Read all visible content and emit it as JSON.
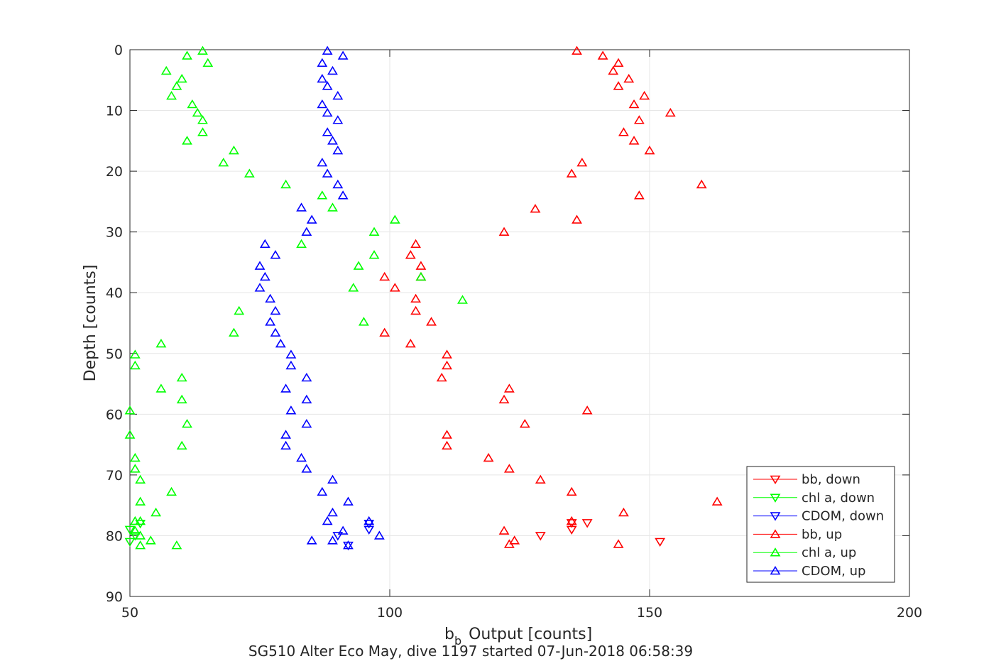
{
  "chart_data": {
    "type": "scatter",
    "xlabel": "b",
    "xlabel_sub": "b",
    "xlabel_rest": " Output [counts]",
    "ylabel": "Depth [counts]",
    "caption": "SG510 Alter Eco May, dive 1197 started 07-Jun-2018 06:58:39",
    "xlim": [
      50,
      200
    ],
    "ylim": [
      0,
      90
    ],
    "y_reversed": true,
    "grid": true,
    "legend_position": "bottom-right",
    "x_ticks": [
      50,
      100,
      150,
      200
    ],
    "y_ticks": [
      0,
      10,
      20,
      30,
      40,
      50,
      60,
      70,
      80,
      90
    ],
    "series": [
      {
        "name": "bb, down",
        "color": "#ff0000",
        "marker": "triangle-down",
        "points": [
          [
            129,
            80.0
          ],
          [
            135,
            79.0
          ],
          [
            138,
            77.9
          ],
          [
            152,
            81.0
          ],
          [
            135,
            77.9
          ]
        ]
      },
      {
        "name": "chl a, down",
        "color": "#00ff00",
        "marker": "triangle-down",
        "points": [
          [
            50,
            79.0
          ],
          [
            51,
            80.0
          ],
          [
            50,
            81.0
          ],
          [
            52,
            78.0
          ]
        ]
      },
      {
        "name": "CDOM, down",
        "color": "#0000ff",
        "marker": "triangle-down",
        "points": [
          [
            96,
            79.0
          ],
          [
            90,
            80.0
          ],
          [
            92,
            81.6
          ],
          [
            96,
            78.0
          ]
        ]
      },
      {
        "name": "bb, up",
        "color": "#ff0000",
        "marker": "triangle-up",
        "points": [
          [
            136,
            0.2
          ],
          [
            141,
            1.0
          ],
          [
            144,
            2.2
          ],
          [
            143,
            3.5
          ],
          [
            146,
            4.8
          ],
          [
            144,
            6.0
          ],
          [
            149,
            7.6
          ],
          [
            147,
            9.0
          ],
          [
            154,
            10.4
          ],
          [
            148,
            11.6
          ],
          [
            145,
            13.6
          ],
          [
            147,
            15.0
          ],
          [
            150,
            16.6
          ],
          [
            137,
            18.6
          ],
          [
            135,
            20.4
          ],
          [
            160,
            22.2
          ],
          [
            148,
            24.0
          ],
          [
            128,
            26.2
          ],
          [
            136,
            28.0
          ],
          [
            122,
            30.0
          ],
          [
            105,
            32.0
          ],
          [
            104,
            33.8
          ],
          [
            106,
            35.6
          ],
          [
            99,
            37.4
          ],
          [
            106,
            37.4
          ],
          [
            101,
            39.2
          ],
          [
            105,
            41.0
          ],
          [
            105,
            43.0
          ],
          [
            108,
            44.8
          ],
          [
            99,
            46.6
          ],
          [
            104,
            48.4
          ],
          [
            111,
            50.2
          ],
          [
            111,
            52.0
          ],
          [
            110,
            54.0
          ],
          [
            123,
            55.8
          ],
          [
            122,
            57.6
          ],
          [
            138,
            59.4
          ],
          [
            126,
            61.6
          ],
          [
            111,
            63.4
          ],
          [
            111,
            65.2
          ],
          [
            119,
            67.2
          ],
          [
            123,
            69.0
          ],
          [
            129,
            70.8
          ],
          [
            135,
            72.8
          ],
          [
            163,
            74.4
          ],
          [
            145,
            76.2
          ],
          [
            135,
            77.6
          ],
          [
            122,
            79.2
          ],
          [
            124,
            80.8
          ],
          [
            123,
            81.4
          ],
          [
            144,
            81.4
          ]
        ]
      },
      {
        "name": "chl a, up",
        "color": "#00ff00",
        "marker": "triangle-up",
        "points": [
          [
            64,
            0.2
          ],
          [
            61,
            1.0
          ],
          [
            65,
            2.2
          ],
          [
            57,
            3.5
          ],
          [
            60,
            4.8
          ],
          [
            59,
            6.0
          ],
          [
            58,
            7.6
          ],
          [
            62,
            9.0
          ],
          [
            63,
            10.4
          ],
          [
            64,
            11.6
          ],
          [
            64,
            13.6
          ],
          [
            61,
            15.0
          ],
          [
            70,
            16.6
          ],
          [
            68,
            18.6
          ],
          [
            73,
            20.4
          ],
          [
            80,
            22.2
          ],
          [
            87,
            24.0
          ],
          [
            89,
            26.0
          ],
          [
            101,
            28.0
          ],
          [
            97,
            30.0
          ],
          [
            83,
            32.0
          ],
          [
            97,
            33.8
          ],
          [
            94,
            35.6
          ],
          [
            106,
            37.4
          ],
          [
            93,
            39.2
          ],
          [
            114,
            41.2
          ],
          [
            71,
            43.0
          ],
          [
            95,
            44.8
          ],
          [
            70,
            46.6
          ],
          [
            56,
            48.4
          ],
          [
            51,
            50.2
          ],
          [
            51,
            52.0
          ],
          [
            60,
            54.0
          ],
          [
            56,
            55.8
          ],
          [
            60,
            57.6
          ],
          [
            50,
            59.4
          ],
          [
            61,
            61.6
          ],
          [
            50,
            63.4
          ],
          [
            60,
            65.2
          ],
          [
            51,
            67.2
          ],
          [
            51,
            69.0
          ],
          [
            52,
            70.8
          ],
          [
            58,
            72.8
          ],
          [
            52,
            74.4
          ],
          [
            55,
            76.2
          ],
          [
            51,
            77.6
          ],
          [
            52,
            77.6
          ],
          [
            51,
            79.2
          ],
          [
            52,
            80.0
          ],
          [
            54,
            80.8
          ],
          [
            52,
            81.6
          ],
          [
            59,
            81.6
          ]
        ]
      },
      {
        "name": "CDOM, up",
        "color": "#0000ff",
        "marker": "triangle-up",
        "points": [
          [
            88,
            0.2
          ],
          [
            91,
            1.0
          ],
          [
            87,
            2.2
          ],
          [
            89,
            3.5
          ],
          [
            87,
            4.8
          ],
          [
            88,
            6.0
          ],
          [
            90,
            7.6
          ],
          [
            87,
            9.0
          ],
          [
            88,
            10.4
          ],
          [
            90,
            11.6
          ],
          [
            88,
            13.6
          ],
          [
            89,
            15.0
          ],
          [
            90,
            16.6
          ],
          [
            87,
            18.6
          ],
          [
            88,
            20.4
          ],
          [
            90,
            22.2
          ],
          [
            91,
            24.0
          ],
          [
            83,
            26.0
          ],
          [
            85,
            28.0
          ],
          [
            84,
            30.0
          ],
          [
            76,
            32.0
          ],
          [
            78,
            33.8
          ],
          [
            75,
            35.6
          ],
          [
            76,
            37.4
          ],
          [
            75,
            39.2
          ],
          [
            77,
            41.0
          ],
          [
            78,
            43.0
          ],
          [
            77,
            44.8
          ],
          [
            78,
            46.6
          ],
          [
            79,
            48.4
          ],
          [
            81,
            50.2
          ],
          [
            81,
            52.0
          ],
          [
            84,
            54.0
          ],
          [
            80,
            55.8
          ],
          [
            84,
            57.6
          ],
          [
            81,
            59.4
          ],
          [
            84,
            61.6
          ],
          [
            80,
            63.4
          ],
          [
            80,
            65.2
          ],
          [
            83,
            67.2
          ],
          [
            84,
            69.0
          ],
          [
            89,
            70.8
          ],
          [
            87,
            72.8
          ],
          [
            92,
            74.4
          ],
          [
            89,
            76.2
          ],
          [
            88,
            77.6
          ],
          [
            96,
            77.6
          ],
          [
            91,
            79.2
          ],
          [
            98,
            80.0
          ],
          [
            85,
            80.8
          ],
          [
            89,
            80.8
          ],
          [
            92,
            81.6
          ]
        ]
      }
    ]
  }
}
